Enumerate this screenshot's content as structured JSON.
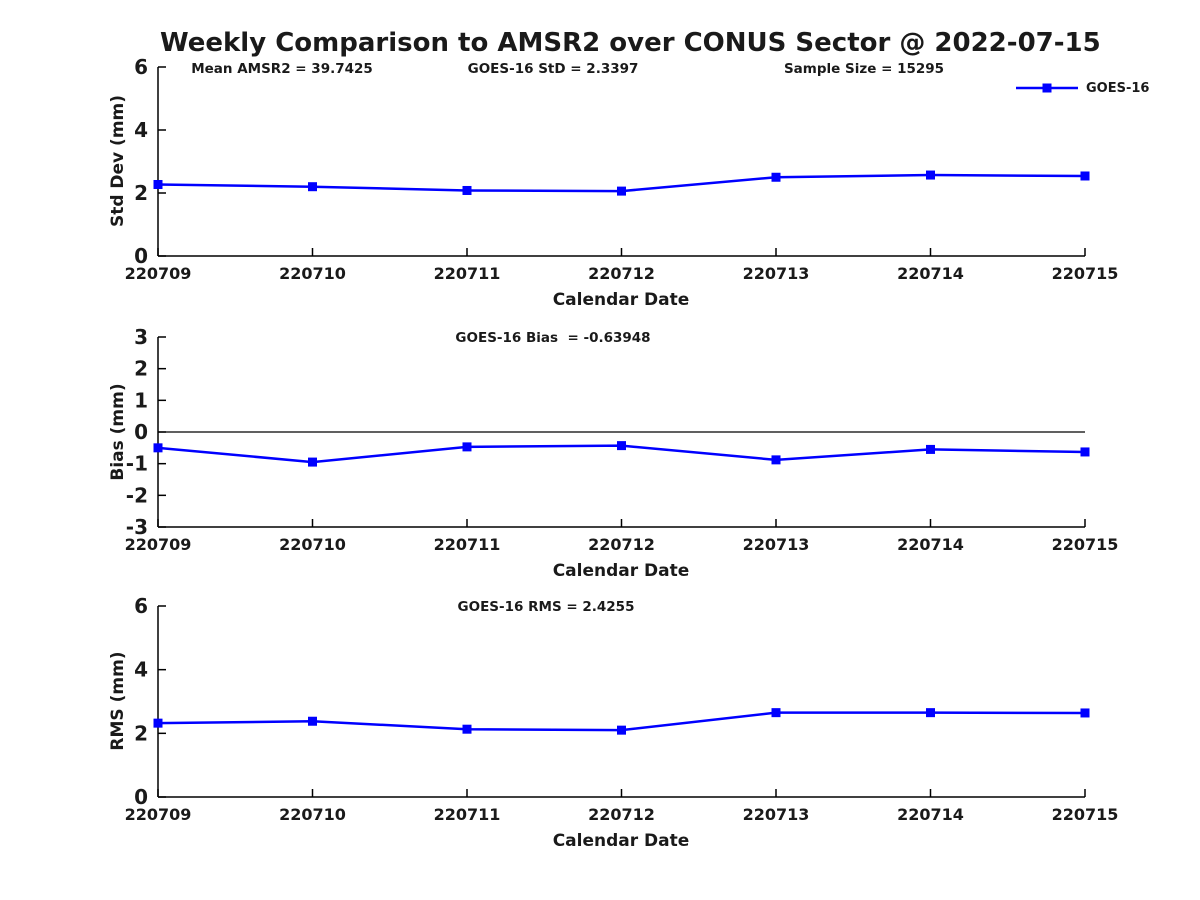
{
  "header": {
    "title": "Weekly Comparison to AMSR2 over CONUS Sector @ 2022-07-15",
    "annotations": {
      "mean_amsr2": "Mean AMSR2 = 39.7425",
      "goes16_std": "GOES-16 StD = 2.3397",
      "sample_size": "Sample Size = 15295"
    }
  },
  "legend": {
    "label": "GOES-16",
    "position": "top-right",
    "marker": "square"
  },
  "colors": {
    "line": "#0000FF",
    "axis": "#000000",
    "text": "#1a1a1a",
    "background": "#FFFFFF"
  },
  "chart_data": [
    {
      "type": "line",
      "ylabel": "Std Dev (mm)",
      "xlabel": "Calendar Date",
      "ylim": [
        0,
        6
      ],
      "yticks": [
        0,
        2,
        4,
        6
      ],
      "grid": false,
      "zero_line": false,
      "annotation": "",
      "categories": [
        "220709",
        "220710",
        "220711",
        "220712",
        "220713",
        "220714",
        "220715"
      ],
      "series": [
        {
          "name": "GOES-16",
          "values": [
            2.27,
            2.2,
            2.08,
            2.06,
            2.5,
            2.57,
            2.54
          ]
        }
      ]
    },
    {
      "type": "line",
      "ylabel": "Bias (mm)",
      "xlabel": "Calendar Date",
      "ylim": [
        -3,
        3
      ],
      "yticks": [
        -3,
        -2,
        -1,
        0,
        1,
        2,
        3
      ],
      "grid": false,
      "zero_line": true,
      "annotation": "GOES-16 Bias  = -0.63948",
      "categories": [
        "220709",
        "220710",
        "220711",
        "220712",
        "220713",
        "220714",
        "220715"
      ],
      "series": [
        {
          "name": "GOES-16",
          "values": [
            -0.5,
            -0.95,
            -0.47,
            -0.43,
            -0.88,
            -0.55,
            -0.63
          ]
        }
      ]
    },
    {
      "type": "line",
      "ylabel": "RMS (mm)",
      "xlabel": "Calendar Date",
      "ylim": [
        0,
        6
      ],
      "yticks": [
        0,
        2,
        4,
        6
      ],
      "grid": false,
      "zero_line": false,
      "annotation": "GOES-16 RMS = 2.4255",
      "categories": [
        "220709",
        "220710",
        "220711",
        "220712",
        "220713",
        "220714",
        "220715"
      ],
      "series": [
        {
          "name": "GOES-16",
          "values": [
            2.32,
            2.38,
            2.13,
            2.1,
            2.65,
            2.65,
            2.64
          ]
        }
      ]
    }
  ]
}
